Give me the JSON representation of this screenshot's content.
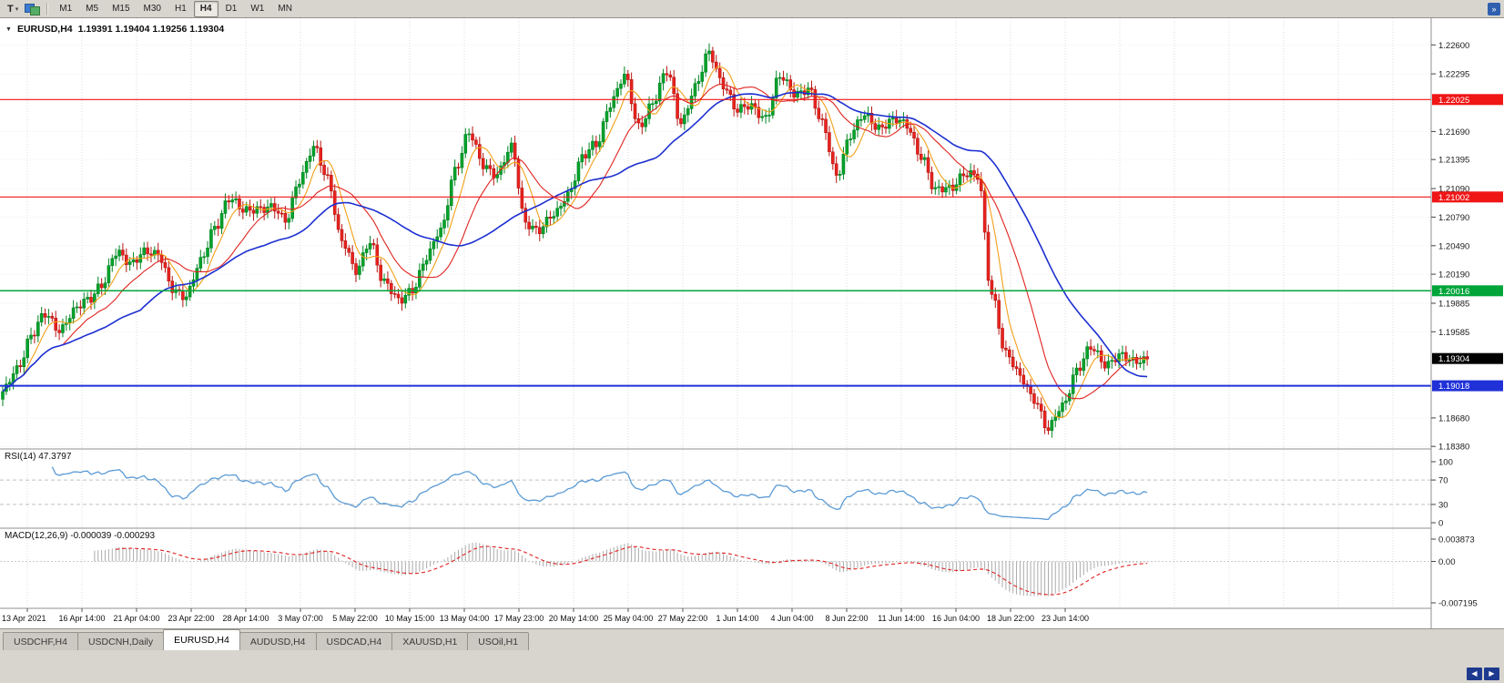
{
  "icons": {
    "caret_down": "▾",
    "more": "»",
    "tab_scroll_left": "◀",
    "tab_scroll_right": "▶"
  },
  "toolbar": {
    "t_button": "T",
    "timeframes": [
      "M1",
      "M5",
      "M15",
      "M30",
      "H1",
      "H4",
      "D1",
      "W1",
      "MN"
    ],
    "active_timeframe": "H4"
  },
  "chart": {
    "title": {
      "collapse_icon": "▼",
      "symbol": "EURUSD,H4",
      "ohlc": "1.19391 1.19404 1.19256 1.19304"
    },
    "price_axis_labels": [
      {
        "text": "1.22600",
        "value": 1.226
      },
      {
        "text": "1.22295",
        "value": 1.22295
      },
      {
        "text": "1.21690",
        "value": 1.2169
      },
      {
        "text": "1.21395",
        "value": 1.21395
      },
      {
        "text": "1.21090",
        "value": 1.2109
      },
      {
        "text": "1.20790",
        "value": 1.2079
      },
      {
        "text": "1.20490",
        "value": 1.2049
      },
      {
        "text": "1.20190",
        "value": 1.2019
      },
      {
        "text": "1.19885",
        "value": 1.19885
      },
      {
        "text": "1.19585",
        "value": 1.19585
      },
      {
        "text": "1.18680",
        "value": 1.1868
      },
      {
        "text": "1.18380",
        "value": 1.1838
      }
    ],
    "levels": [
      {
        "text": "1.22025",
        "value": 1.22025,
        "color": "#f01616",
        "width": 1.2
      },
      {
        "text": "1.21002",
        "value": 1.21002,
        "color": "#f01616",
        "width": 1.2
      },
      {
        "text": "1.20016",
        "value": 1.20016,
        "color": "#00a53a",
        "width": 1.5
      },
      {
        "text": "1.19018",
        "value": 1.19018,
        "color": "#2031d8",
        "width": 2
      }
    ],
    "current_price": {
      "text": "1.19304",
      "value": 1.19304,
      "bg": "#000000"
    },
    "time_axis": [
      "13 Apr 2021",
      "16 Apr 14:00",
      "21 Apr 04:00",
      "23 Apr 22:00",
      "28 Apr 14:00",
      "3 May 07:00",
      "5 May 22:00",
      "10 May 15:00",
      "13 May 04:00",
      "17 May 23:00",
      "20 May 14:00",
      "25 May 04:00",
      "27 May 22:00",
      "1 Jun 14:00",
      "4 Jun 04:00",
      "8 Jun 22:00",
      "11 Jun 14:00",
      "16 Jun 04:00",
      "18 Jun 22:00",
      "23 Jun 14:00"
    ]
  },
  "chart_data": {
    "type": "candlestick",
    "symbol": "EURUSD",
    "timeframe": "H4",
    "visible_range": {
      "start": "13 Apr 2021",
      "end": "24 Jun 2021"
    },
    "ylim": [
      1.1838,
      1.226
    ],
    "ohlc_current": {
      "open": 1.19391,
      "high": 1.19404,
      "low": 1.19256,
      "close": 1.19304
    },
    "close_path": [
      1.1893,
      1.192,
      1.1955,
      1.1975,
      1.1962,
      1.198,
      1.199,
      1.201,
      1.204,
      1.203,
      1.2045,
      1.2037,
      1.2005,
      1.1997,
      1.203,
      1.207,
      1.2098,
      1.2085,
      1.209,
      1.2088,
      1.2075,
      1.212,
      1.215,
      1.212,
      1.2055,
      1.202,
      1.2055,
      1.201,
      1.199,
      1.2005,
      1.2035,
      1.2065,
      1.213,
      1.2165,
      1.2135,
      1.2125,
      1.215,
      1.2075,
      1.2065,
      1.208,
      1.2105,
      1.214,
      1.2155,
      1.22,
      1.2225,
      1.2175,
      1.22,
      1.223,
      1.218,
      1.2215,
      1.225,
      1.222,
      1.219,
      1.2195,
      1.2185,
      1.2225,
      1.221,
      1.2215,
      1.2175,
      1.2125,
      1.2165,
      1.2185,
      1.2175,
      1.218,
      1.2175,
      1.2145,
      1.2105,
      1.211,
      1.2125,
      1.212,
      1.2,
      1.1935,
      1.191,
      1.189,
      1.1855,
      1.188,
      1.192,
      1.194,
      1.1925,
      1.1935,
      1.1925,
      1.193
    ],
    "upsample": 4,
    "colors": {
      "up": "#00a22b",
      "up_border": "#028522",
      "down": "#e8231f",
      "down_border": "#b81511",
      "ma_fast": "#f2a017",
      "ma_mid": "#e02420",
      "ma_slow": "#1c2fd0",
      "grid": "#dcdcdc"
    },
    "ma_windows": {
      "fast": 7,
      "mid": 18,
      "slow": 40
    }
  },
  "rsi": {
    "label": "RSI(14) 47.3797",
    "period": 14,
    "value": 47.3797,
    "axis": [
      "100",
      "70",
      "30",
      "0"
    ],
    "levels": [
      70,
      30
    ],
    "color": "#5b9bd5"
  },
  "macd": {
    "label": "MACD(12,26,9) -0.000039 -0.000293",
    "fast": 12,
    "slow": 26,
    "signal": 9,
    "values": [
      -3.9e-05,
      -0.000293
    ],
    "axis": [
      {
        "text": "0.003873",
        "value": 0.003873
      },
      {
        "text": "0.00",
        "value": 0
      },
      {
        "text": "-0.007195",
        "value": -0.007195
      }
    ],
    "histogram_color": "#ababab",
    "signal_color": "#e02020"
  },
  "tabs": {
    "items": [
      "USDCHF,H4",
      "USDCNH,Daily",
      "EURUSD,H4",
      "AUDUSD,H4",
      "USDCAD,H4",
      "XAUUSD,H1",
      "USOil,H1"
    ],
    "active": "EURUSD,H4"
  }
}
